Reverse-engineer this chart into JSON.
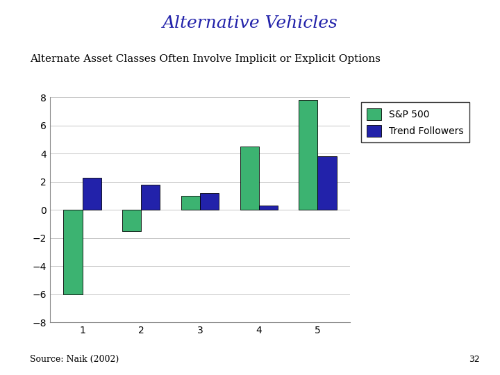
{
  "title": "Alternative Vehicles",
  "subtitle": "Alternate Asset Classes Often Involve Implicit or Explicit Options",
  "source": "Source: Naik (2002)",
  "page_number": "32",
  "categories": [
    "1",
    "2",
    "3",
    "4",
    "5"
  ],
  "sp500": [
    -6.0,
    -1.5,
    1.0,
    4.5,
    7.8
  ],
  "trend_followers": [
    2.3,
    1.8,
    1.2,
    0.3,
    3.8
  ],
  "sp500_color": "#3CB371",
  "trend_followers_color": "#2222AA",
  "ylim": [
    -8,
    8
  ],
  "yticks": [
    -8,
    -6,
    -4,
    -2,
    0,
    2,
    4,
    6,
    8
  ],
  "title_color": "#2222AA",
  "subtitle_color": "#000000",
  "background_color": "#FFFFFF",
  "bar_width": 0.32,
  "legend_labels": [
    "S&P 500",
    "Trend Followers"
  ],
  "title_fontsize": 18,
  "subtitle_fontsize": 11,
  "axis_fontsize": 10,
  "legend_fontsize": 10
}
